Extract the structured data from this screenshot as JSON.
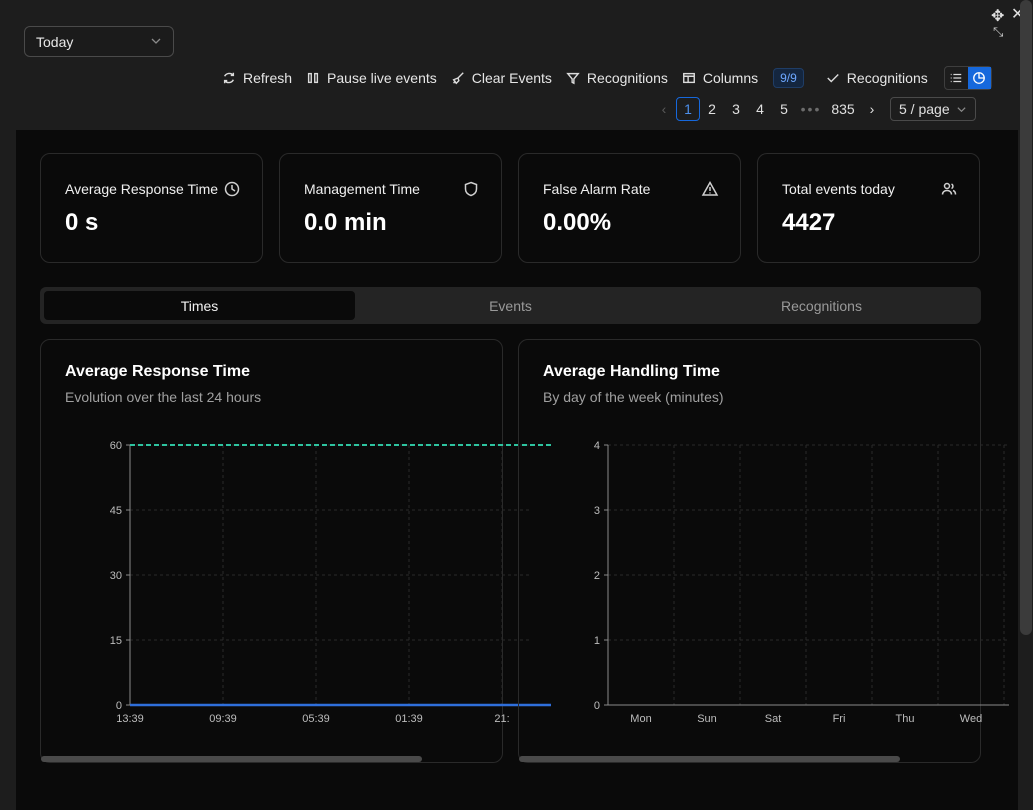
{
  "range_select": {
    "value": "Today"
  },
  "toolbar": {
    "refresh": "Refresh",
    "pause": "Pause live events",
    "clear": "Clear Events",
    "filter": "Recognitions",
    "columns": "Columns",
    "columns_badge": "9/9",
    "recognitions_check": "Recognitions"
  },
  "pagination": {
    "pages": [
      "1",
      "2",
      "3",
      "4",
      "5"
    ],
    "active": "1",
    "last": "835",
    "page_size": "5 / page"
  },
  "stats": [
    {
      "label": "Average Response Time",
      "value": "0 s",
      "icon": "clock-icon"
    },
    {
      "label": "Management Time",
      "value": "0.0 min",
      "icon": "shield-icon"
    },
    {
      "label": "False Alarm Rate",
      "value": "0.00%",
      "icon": "warning-icon"
    },
    {
      "label": "Total events today",
      "value": "4427",
      "icon": "users-icon"
    }
  ],
  "tabs": [
    "Times",
    "Events",
    "Recognitions"
  ],
  "active_tab": "Times",
  "charts": {
    "response": {
      "title": "Average Response Time",
      "subtitle": "Evolution over the last 24 hours"
    },
    "handling": {
      "title": "Average Handling Time",
      "subtitle": "By day of the week (minutes)"
    }
  },
  "chart_data": [
    {
      "type": "line",
      "title": "Average Response Time",
      "subtitle": "Evolution over the last 24 hours",
      "x": [
        "13:39",
        "09:39",
        "05:39",
        "01:39",
        "21:"
      ],
      "ylim": [
        0,
        60
      ],
      "yticks": [
        0,
        15,
        30,
        45,
        60
      ],
      "series": [
        {
          "values": [
            0,
            0,
            0,
            0,
            0
          ],
          "color": "#2f6fdb"
        }
      ],
      "reference_line": {
        "value": 60,
        "color": "#2ec4a0",
        "style": "dashed"
      },
      "grid": true
    },
    {
      "type": "bar",
      "title": "Average Handling Time",
      "subtitle": "By day of the week (minutes)",
      "categories": [
        "Mon",
        "Sun",
        "Sat",
        "Fri",
        "Thu",
        "Wed"
      ],
      "values": [
        0,
        0,
        0,
        0,
        0,
        0
      ],
      "ylim": [
        0,
        4
      ],
      "yticks": [
        0,
        1,
        2,
        3,
        4
      ],
      "grid": true
    }
  ],
  "colors": {
    "accent": "#1668dc",
    "panel": "#0a0a0a",
    "bg": "#1d1d1d"
  }
}
